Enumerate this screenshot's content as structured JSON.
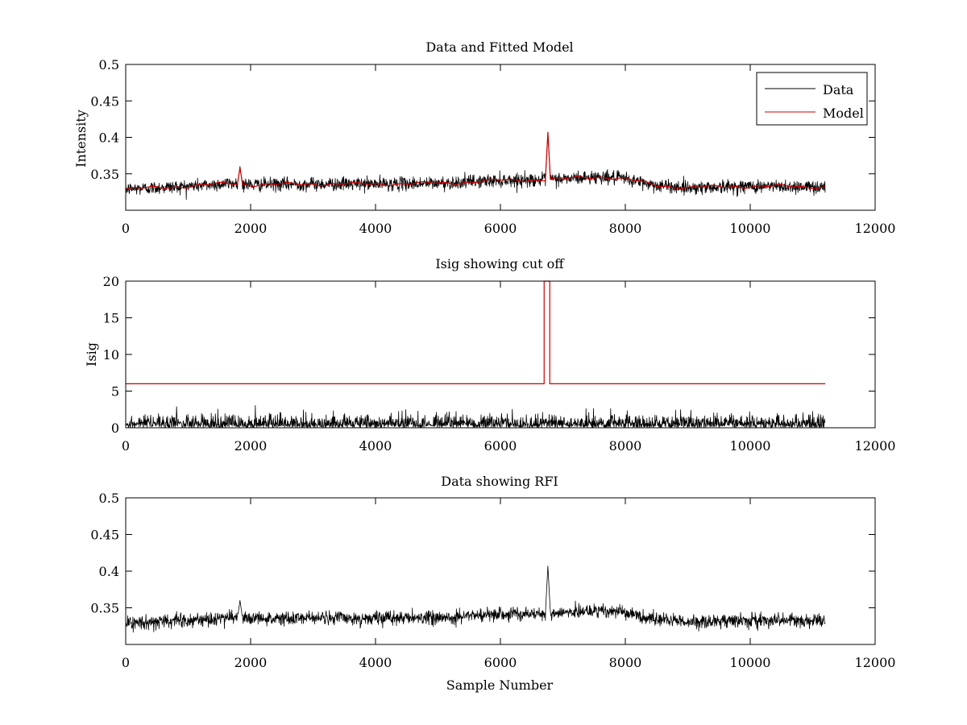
{
  "chart_data": [
    {
      "id": "fit",
      "type": "line",
      "title": "Data and Fitted Model",
      "xlabel": "",
      "ylabel": "Intensity",
      "xlim": [
        0,
        12000
      ],
      "ylim": [
        0.3,
        0.5
      ],
      "xticks": [
        0,
        2000,
        4000,
        6000,
        8000,
        10000,
        12000
      ],
      "xtick_labels": [
        "0",
        "2000",
        "4000",
        "6000",
        "8000",
        "10000",
        "12000"
      ],
      "yticks": [
        0.35,
        0.4,
        0.45,
        0.5
      ],
      "ytick_labels": [
        "0.35",
        "0.4",
        "0.45",
        "0.5"
      ],
      "grid": false,
      "legend": {
        "position": "top-right",
        "entries": [
          "Data",
          "Model"
        ]
      },
      "n_samples": 11200,
      "series": [
        {
          "name": "Data",
          "color": "#000000",
          "kind": "noisy",
          "noise": 0.0045,
          "baseline": {
            "x": [
              0,
              1000,
              1700,
              2000,
              3000,
              4000,
              5000,
              6000,
              6700,
              7000,
              7600,
              8000,
              8500,
              9000,
              10000,
              11200
            ],
            "y": [
              0.329,
              0.333,
              0.337,
              0.335,
              0.336,
              0.336,
              0.337,
              0.341,
              0.342,
              0.343,
              0.346,
              0.343,
              0.334,
              0.331,
              0.333,
              0.332
            ]
          },
          "spikes": [
            {
              "x": 1830,
              "y": 0.36
            },
            {
              "x": 6760,
              "y": 0.407
            }
          ]
        },
        {
          "name": "Model",
          "color": "#cc0000",
          "kind": "smooth",
          "baseline": {
            "x": [
              0,
              1000,
              1700,
              2000,
              3000,
              4000,
              5000,
              6000,
              6700,
              7000,
              7600,
              8000,
              8500,
              9000,
              10000,
              11200
            ],
            "y": [
              0.329,
              0.333,
              0.337,
              0.335,
              0.336,
              0.336,
              0.337,
              0.341,
              0.342,
              0.343,
              0.346,
              0.343,
              0.334,
              0.331,
              0.333,
              0.332
            ]
          },
          "spikes": [
            {
              "x": 1830,
              "y": 0.358
            },
            {
              "x": 6760,
              "y": 0.407
            }
          ]
        }
      ]
    },
    {
      "id": "isig",
      "type": "line",
      "title": "Isig showing cut off",
      "xlabel": "",
      "ylabel": "Isig",
      "xlim": [
        0,
        12000
      ],
      "ylim": [
        0,
        20
      ],
      "xticks": [
        0,
        2000,
        4000,
        6000,
        8000,
        10000,
        12000
      ],
      "xtick_labels": [
        "0",
        "2000",
        "4000",
        "6000",
        "8000",
        "10000",
        "12000"
      ],
      "yticks": [
        0,
        5,
        10,
        15,
        20
      ],
      "ytick_labels": [
        "0",
        "5",
        "10",
        "15",
        "20"
      ],
      "grid": false,
      "n_samples": 11200,
      "series": [
        {
          "name": "Isig",
          "color": "#000000",
          "kind": "halfnormal",
          "scale": 0.8
        },
        {
          "name": "Cut off",
          "color": "#cc0000",
          "kind": "step",
          "x": [
            0,
            6700,
            6700,
            6790,
            6790,
            11200
          ],
          "y": [
            6,
            6,
            20,
            20,
            6,
            6
          ]
        }
      ]
    },
    {
      "id": "rfi",
      "type": "line",
      "title": "Data showing RFI",
      "xlabel": "Sample Number",
      "ylabel": "",
      "xlim": [
        0,
        12000
      ],
      "ylim": [
        0.3,
        0.5
      ],
      "xticks": [
        0,
        2000,
        4000,
        6000,
        8000,
        10000,
        12000
      ],
      "xtick_labels": [
        "0",
        "2000",
        "4000",
        "6000",
        "8000",
        "10000",
        "12000"
      ],
      "yticks": [
        0.35,
        0.4,
        0.45,
        0.5
      ],
      "ytick_labels": [
        "0.35",
        "0.4",
        "0.45",
        "0.5"
      ],
      "grid": false,
      "n_samples": 11200,
      "series": [
        {
          "name": "Data",
          "color": "#000000",
          "kind": "noisy",
          "noise": 0.0045,
          "baseline": {
            "x": [
              0,
              1000,
              1700,
              2000,
              3000,
              4000,
              5000,
              6000,
              6700,
              7000,
              7600,
              8000,
              8500,
              9000,
              10000,
              11200
            ],
            "y": [
              0.329,
              0.333,
              0.337,
              0.335,
              0.336,
              0.336,
              0.337,
              0.341,
              0.342,
              0.343,
              0.346,
              0.343,
              0.334,
              0.331,
              0.333,
              0.332
            ]
          },
          "spikes": [
            {
              "x": 1830,
              "y": 0.36
            },
            {
              "x": 6760,
              "y": 0.407
            }
          ]
        }
      ]
    }
  ]
}
